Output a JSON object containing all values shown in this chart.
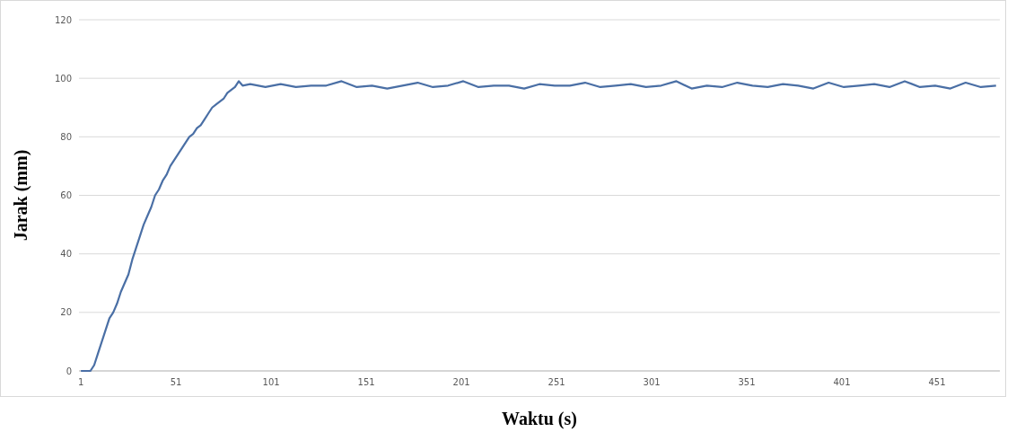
{
  "chart_data": {
    "type": "line",
    "xlabel": "Waktu (s)",
    "ylabel": "Jarak (mm)",
    "xlim": [
      0,
      484
    ],
    "xticks": [
      1,
      51,
      101,
      151,
      201,
      251,
      301,
      351,
      401,
      451
    ],
    "ylim": [
      0,
      120
    ],
    "yticks": [
      0,
      20,
      40,
      60,
      80,
      100,
      120
    ],
    "grid": "y",
    "series": [
      {
        "color": "#4a6fa5",
        "x": [
          1,
          6,
          8,
          10,
          12,
          14,
          16,
          18,
          20,
          22,
          24,
          26,
          28,
          30,
          32,
          34,
          36,
          38,
          40,
          42,
          44,
          46,
          48,
          50,
          52,
          54,
          56,
          58,
          60,
          62,
          64,
          66,
          68,
          70,
          72,
          74,
          76,
          78,
          80,
          82,
          84,
          86,
          90,
          98,
          106,
          114,
          122,
          130,
          138,
          146,
          154,
          162,
          170,
          178,
          186,
          194,
          202,
          210,
          218,
          226,
          234,
          242,
          250,
          258,
          266,
          274,
          282,
          290,
          298,
          306,
          314,
          322,
          330,
          338,
          346,
          354,
          362,
          370,
          378,
          386,
          394,
          402,
          410,
          418,
          426,
          434,
          442,
          450,
          458,
          466,
          474,
          482
        ],
        "values": [
          0,
          0,
          2,
          6,
          10,
          14,
          18,
          20,
          23,
          27,
          30,
          33,
          38,
          42,
          46,
          50,
          53,
          56,
          60,
          62,
          65,
          67,
          70,
          72,
          74,
          76,
          78,
          80,
          81,
          83,
          84,
          86,
          88,
          90,
          91,
          92,
          93,
          95,
          96,
          97,
          99,
          97.5,
          98,
          97,
          98,
          97,
          97.5,
          97.5,
          99,
          97,
          97.5,
          96.5,
          97.5,
          98.5,
          97,
          97.5,
          99,
          97,
          97.5,
          97.5,
          96.5,
          98,
          97.5,
          97.5,
          98.5,
          97,
          97.5,
          98,
          97,
          97.5,
          99,
          96.5,
          97.5,
          97,
          98.5,
          97.5,
          97,
          98,
          97.5,
          96.5,
          98.5,
          97,
          97.5,
          98,
          97,
          99,
          97,
          97.5,
          96.5,
          98.5,
          97,
          97.5
        ]
      }
    ]
  }
}
